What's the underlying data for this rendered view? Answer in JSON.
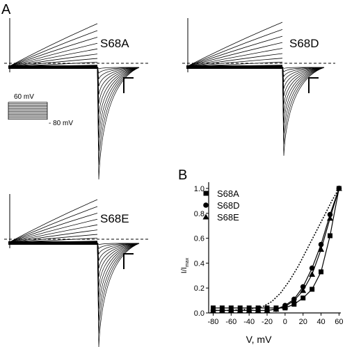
{
  "figure": {
    "panel_a_label": "A",
    "panel_b_label": "B",
    "traces": [
      {
        "name": "S68A"
      },
      {
        "name": "S68D"
      },
      {
        "name": "S68E"
      }
    ],
    "protocol": {
      "top_voltage": "60 mV",
      "bottom_voltage": "- 80 mV"
    }
  },
  "chart_data": {
    "type": "scatter",
    "title": "",
    "xlabel": "V, mV",
    "ylabel": "I/I",
    "ylabel_subscript": "max",
    "xlim": [
      -85,
      62
    ],
    "ylim": [
      0,
      1.05
    ],
    "x_ticks": [
      -80,
      -60,
      -40,
      -20,
      0,
      20,
      40,
      60
    ],
    "y_ticks": [
      0.0,
      0.2,
      0.4,
      0.6,
      0.8,
      1.0
    ],
    "x": [
      -80,
      -70,
      -60,
      -50,
      -40,
      -30,
      -20,
      -10,
      0,
      10,
      20,
      30,
      40,
      50,
      60
    ],
    "series": [
      {
        "name": "S68A",
        "marker": "square",
        "values": [
          0.04,
          0.04,
          0.04,
          0.04,
          0.04,
          0.04,
          0.04,
          0.04,
          0.04,
          0.07,
          0.12,
          0.19,
          0.33,
          0.62,
          1.0
        ]
      },
      {
        "name": "S68D",
        "marker": "circle",
        "values": [
          0.02,
          0.02,
          0.02,
          0.02,
          0.02,
          0.02,
          0.02,
          0.03,
          0.06,
          0.11,
          0.21,
          0.36,
          0.55,
          0.79,
          1.0
        ]
      },
      {
        "name": "S68E",
        "marker": "triangle",
        "values": [
          0.02,
          0.02,
          0.02,
          0.02,
          0.02,
          0.02,
          0.02,
          0.03,
          0.05,
          0.1,
          0.18,
          0.31,
          0.51,
          0.76,
          1.0
        ]
      }
    ],
    "reference_curve": {
      "style": "dotted",
      "x": [
        -80,
        -60,
        -40,
        -25,
        -15,
        -5,
        5,
        15,
        25,
        35,
        45,
        52,
        60
      ],
      "values": [
        0.02,
        0.02,
        0.03,
        0.05,
        0.09,
        0.16,
        0.26,
        0.38,
        0.52,
        0.66,
        0.8,
        0.9,
        1.0
      ]
    },
    "legend_position": "top-left"
  }
}
